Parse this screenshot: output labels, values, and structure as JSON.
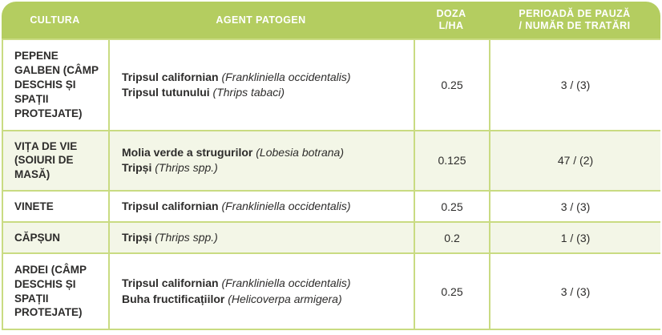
{
  "colors": {
    "header_bg": "#b4cd60",
    "header_text": "#ffffff",
    "border": "#c9db82",
    "row_bg": "#ffffff",
    "row_alt_bg": "#f3f6e7",
    "text": "#2d2c2b"
  },
  "header": {
    "col1": "CULTURA",
    "col2": "AGENT PATOGEN",
    "col3_line1": "DOZA",
    "col3_line2": "L/HA",
    "col4_line1": "PERIOADĂ DE PAUZĂ",
    "col4_line2": "/ NUMĂR DE TRATĂRI"
  },
  "rows": [
    {
      "cultura": "PEPENE GALBEN (CÂMP DESCHIS ȘI SPAȚII PROTEJATE)",
      "agents": [
        {
          "name": "Tripsul californian",
          "latin": "(Frankliniella occidentalis)"
        },
        {
          "name": "Tripsul tutunului",
          "latin": "(Thrips tabaci)"
        }
      ],
      "doza": "0.25",
      "pauza": "3 / (3)"
    },
    {
      "cultura": "VIȚA DE VIE (SOIURI DE MASĂ)",
      "agents": [
        {
          "name": "Molia verde a strugurilor",
          "latin": "(Lobesia botrana)"
        },
        {
          "name": "Tripși",
          "latin": "(Thrips spp.)"
        }
      ],
      "doza": "0.125",
      "pauza": "47 / (2)"
    },
    {
      "cultura": "VINETE",
      "agents": [
        {
          "name": "Tripsul californian",
          "latin": "(Frankliniella occidentalis)"
        }
      ],
      "doza": "0.25",
      "pauza": "3 / (3)"
    },
    {
      "cultura": "CĂPȘUN",
      "agents": [
        {
          "name": "Tripși",
          "latin": "(Thrips spp.)"
        }
      ],
      "doza": "0.2",
      "pauza": "1 / (3)"
    },
    {
      "cultura": "ARDEI (CÂMP DESCHIS ȘI SPAȚII PROTEJATE)",
      "agents": [
        {
          "name": "Tripsul californian",
          "latin": "(Frankliniella occidentalis)"
        },
        {
          "name": "Buha fructificațiilor",
          "latin": "(Helicoverpa armigera)"
        }
      ],
      "doza": "0.25",
      "pauza": "3 / (3)"
    }
  ]
}
